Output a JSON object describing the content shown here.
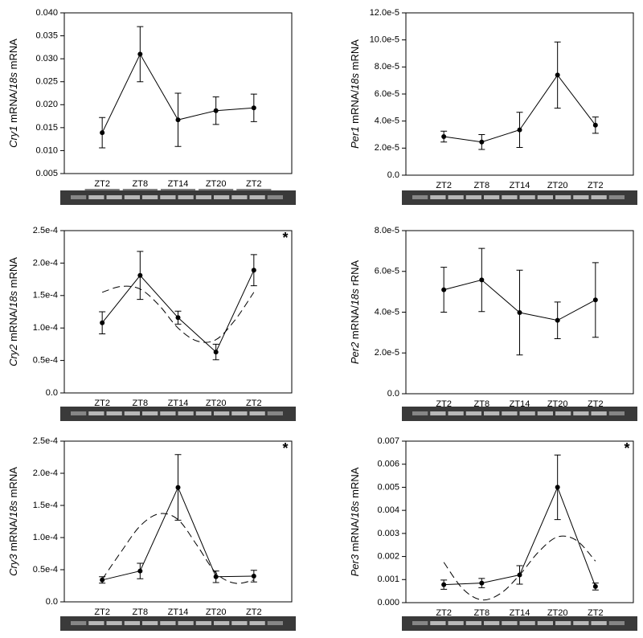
{
  "chart_data": [
    {
      "type": "line",
      "ylabel": [
        "Cry1",
        " mRNA/",
        "18s",
        " mRNA"
      ],
      "categories": [
        "ZT2",
        "ZT8",
        "ZT14",
        "ZT20",
        "ZT2"
      ],
      "values": [
        0.0139,
        0.031,
        0.0167,
        0.0187,
        0.0193
      ],
      "errors": [
        0.0033,
        0.006,
        0.0058,
        0.003,
        0.003
      ],
      "ylim": [
        0.005,
        0.04
      ],
      "yticks": [
        0.005,
        {
          "value": 0.01,
          "label": "0.010"
        },
        0.015,
        {
          "value": 0.02,
          "label": "0.020"
        },
        0.025,
        {
          "value": 0.03,
          "label": "0.030"
        },
        0.035,
        {
          "value": 0.04,
          "label": "0.040"
        }
      ],
      "color": "#000000"
    },
    {
      "type": "line",
      "ylabel": [
        "Per1",
        " mRNA/",
        "18s",
        " mRNA"
      ],
      "categories": [
        "ZT2",
        "ZT8",
        "ZT14",
        "ZT20",
        "ZT2"
      ],
      "values": [
        2.85e-05,
        2.45e-05,
        3.35e-05,
        7.4e-05,
        3.7e-05
      ],
      "errors": [
        4e-06,
        5.5e-06,
        1.3e-05,
        2.45e-05,
        6e-06
      ],
      "ylim": [
        0,
        0.00012
      ],
      "yticks": [
        {
          "value": 0,
          "label": "0.0"
        },
        {
          "value": 2e-05,
          "label": "2.0e-5"
        },
        {
          "value": 4e-05,
          "label": "4.0e-5"
        },
        {
          "value": 6e-05,
          "label": "6.0e-5"
        },
        {
          "value": 8e-05,
          "label": "8.0e-5"
        },
        {
          "value": 0.0001,
          "label": "10.0e-5"
        },
        {
          "value": 0.00012,
          "label": "12.0e-5"
        }
      ],
      "color": "#000000"
    },
    {
      "type": "line",
      "ylabel": [
        "Cry2",
        " mRNA/",
        "18s",
        " mRNA"
      ],
      "annotation": "*",
      "categories": [
        "ZT2",
        "ZT8",
        "ZT14",
        "ZT20",
        "ZT2"
      ],
      "values": [
        0.000108,
        0.000181,
        0.000116,
        6.3e-05,
        0.000189
      ],
      "errors": [
        1.7e-05,
        3.7e-05,
        1e-05,
        1.2e-05,
        2.4e-05
      ],
      "fit_x": [
        0,
        0.5,
        1,
        1.5,
        2,
        2.5,
        3,
        3.5,
        4
      ],
      "fit_values": [
        0.000155,
        0.000164,
        0.00016,
        0.000135,
        0.0001,
        8e-05,
        8.2e-05,
        0.000112,
        0.000155
      ],
      "ylim": [
        0,
        0.00025
      ],
      "yticks": [
        {
          "value": 0,
          "label": "0.0"
        },
        {
          "value": 5e-05,
          "label": "0.5e-4"
        },
        {
          "value": 0.0001,
          "label": "1.0e-4"
        },
        {
          "value": 0.00015,
          "label": "1.5e-4"
        },
        {
          "value": 0.0002,
          "label": "2.0e-4"
        },
        {
          "value": 0.00025,
          "label": "2.5e-4"
        }
      ],
      "color": "#000000"
    },
    {
      "type": "line",
      "ylabel": [
        "Per2",
        " mRNA/",
        "18s",
        " rRNA"
      ],
      "categories": [
        "ZT2",
        "ZT8",
        "ZT14",
        "ZT20",
        "ZT2"
      ],
      "values": [
        5.1e-05,
        5.58e-05,
        3.98e-05,
        3.6e-05,
        4.6e-05
      ],
      "errors": [
        1.1e-05,
        1.55e-05,
        2.08e-05,
        9e-06,
        1.83e-05
      ],
      "ylim": [
        0,
        8e-05
      ],
      "yticks": [
        {
          "value": 0,
          "label": "0.0"
        },
        {
          "value": 2e-05,
          "label": "2.0e-5"
        },
        {
          "value": 4e-05,
          "label": "4.0e-5"
        },
        {
          "value": 6e-05,
          "label": "6.0e-5"
        },
        {
          "value": 8e-05,
          "label": "8.0e-5"
        }
      ],
      "color": "#000000"
    },
    {
      "type": "line",
      "ylabel": [
        "Cry3",
        " mRNA/",
        "18s",
        " mRNA"
      ],
      "annotation": "*",
      "categories": [
        "ZT2",
        "ZT8",
        "ZT14",
        "ZT20",
        "ZT2"
      ],
      "values": [
        3.4e-05,
        4.8e-05,
        0.000178,
        3.9e-05,
        4e-05
      ],
      "errors": [
        5e-06,
        1.2e-05,
        5.1e-05,
        9e-06,
        9e-06
      ],
      "fit_x": [
        0,
        0.5,
        1,
        1.5,
        2,
        2.5,
        3,
        3.5,
        4
      ],
      "fit_values": [
        3.5e-05,
        7.8e-05,
        0.000118,
        0.000137,
        0.000128,
        8.8e-05,
        4.5e-05,
        2.9e-05,
        3.4e-05
      ],
      "ylim": [
        0,
        0.00025
      ],
      "yticks": [
        {
          "value": 0,
          "label": "0.0"
        },
        {
          "value": 5e-05,
          "label": "0.5e-4"
        },
        {
          "value": 0.0001,
          "label": "1.0e-4"
        },
        {
          "value": 0.00015,
          "label": "1.5e-4"
        },
        {
          "value": 0.0002,
          "label": "2.0e-4"
        },
        {
          "value": 0.00025,
          "label": "2.5e-4"
        }
      ],
      "color": "#000000"
    },
    {
      "type": "line",
      "ylabel": [
        "Per3",
        " mRNA/",
        "18s",
        " mRNA"
      ],
      "annotation": "*",
      "categories": [
        "ZT2",
        "ZT8",
        "ZT14",
        "ZT20",
        "ZT2"
      ],
      "values": [
        0.00078,
        0.00085,
        0.0012,
        0.005,
        0.0007
      ],
      "errors": [
        0.0002,
        0.0002,
        0.0004,
        0.0014,
        0.00015
      ],
      "fit_x": [
        0,
        0.5,
        1,
        1.5,
        2,
        2.5,
        3,
        3.5,
        4
      ],
      "fit_values": [
        0.00175,
        0.0006,
        0.00012,
        0.0004,
        0.0012,
        0.0022,
        0.00285,
        0.0027,
        0.0018
      ],
      "ylim": [
        0,
        0.007
      ],
      "yticks": [
        {
          "value": 0,
          "label": "0.000"
        },
        0.001,
        0.002,
        0.003,
        0.004,
        0.005,
        0.006,
        0.007
      ],
      "color": "#000000"
    }
  ]
}
